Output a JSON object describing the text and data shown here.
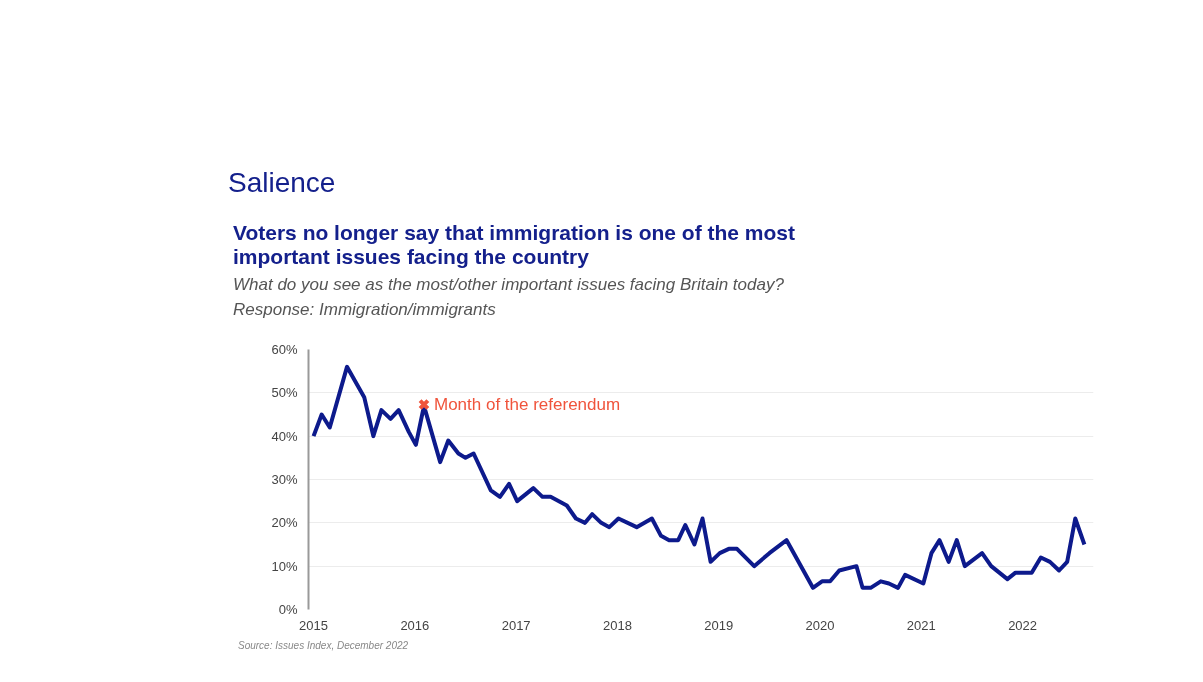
{
  "chart_data": {
    "type": "line",
    "title": "Salience",
    "subtitle": "Voters no longer say that immigration is one of the most important issues facing the country",
    "annotations": [
      "What do you see as the most/other important issues facing Britain today?",
      "Response: Immigration/immigrants",
      {
        "text": "Month of the referendum",
        "x": 2016.09,
        "y": 47.3
      },
      "Source: Issues Index, December 2022"
    ],
    "series": [
      {
        "color": "#0d1a8c",
        "x": [
          2015.0,
          2015.08,
          2015.16,
          2015.33,
          2015.5,
          2015.59,
          2015.67,
          2015.76,
          2015.84,
          2015.94,
          2016.01,
          2016.09,
          2016.25,
          2016.33,
          2016.43,
          2016.5,
          2016.58,
          2016.75,
          2016.84,
          2016.93,
          2017.01,
          2017.17,
          2017.26,
          2017.34,
          2017.5,
          2017.59,
          2017.68,
          2017.75,
          2017.84,
          2017.92,
          2018.01,
          2018.19,
          2018.34,
          2018.43,
          2018.51,
          2018.6,
          2018.67,
          2018.76,
          2018.84,
          2018.92,
          2019.01,
          2019.1,
          2019.18,
          2019.35,
          2019.5,
          2019.67,
          2019.93,
          2020.02,
          2020.1,
          2020.19,
          2020.36,
          2020.42,
          2020.5,
          2020.6,
          2020.68,
          2020.77,
          2020.84,
          2021.02,
          2021.1,
          2021.18,
          2021.27,
          2021.35,
          2021.43,
          2021.6,
          2021.69,
          2021.77,
          2021.85,
          2021.93,
          2022.09,
          2022.18,
          2022.27,
          2022.36,
          2022.44,
          2022.52,
          2022.61
        ],
        "values": [
          40,
          45,
          42,
          56,
          49,
          40,
          46,
          44,
          46,
          41,
          38,
          47,
          34,
          39,
          36,
          35,
          36,
          27.5,
          26,
          29,
          25,
          28,
          26,
          26,
          24,
          21,
          20,
          22,
          20,
          19,
          21,
          19,
          21,
          17,
          16,
          16,
          19.5,
          15,
          21,
          11,
          13,
          14,
          14,
          10,
          13,
          16,
          5,
          6.5,
          6.5,
          9,
          10,
          5,
          5,
          6.5,
          6,
          5,
          8,
          6,
          13,
          16,
          11,
          16,
          10,
          13,
          10,
          8.5,
          7,
          8.5,
          8.5,
          12,
          11,
          9,
          11,
          21,
          15
        ]
      }
    ],
    "xlim": [
      2014.95,
      2022.7
    ],
    "ylim": [
      0,
      60
    ],
    "xticks": [
      2015,
      2016,
      2017,
      2018,
      2019,
      2020,
      2021,
      2022
    ],
    "yticks": [
      {
        "value": 0,
        "label": "0%"
      },
      {
        "value": 10,
        "label": "10%"
      },
      {
        "value": 20,
        "label": "20%"
      },
      {
        "value": 30,
        "label": "30%"
      },
      {
        "value": 40,
        "label": "40%"
      },
      {
        "value": 50,
        "label": "50%"
      },
      {
        "value": 60,
        "label": "60%"
      }
    ],
    "grid": "y",
    "line_style": "solid"
  }
}
